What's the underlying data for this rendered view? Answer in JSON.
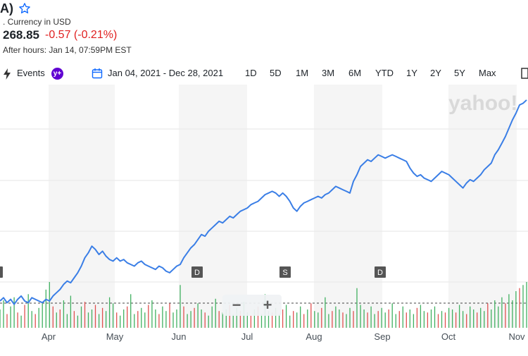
{
  "header": {
    "ticker_title": "A)",
    "currency": ". Currency in USD",
    "price": "268.85",
    "change": "-0.57 (-0.21%)",
    "after_hours": "After hours: Jan 14, 07:59PM EST"
  },
  "toolbar": {
    "events_label": "Events",
    "events_badge": "y+",
    "date_range": "Jan 04, 2021 - Dec 28, 2021",
    "ranges": [
      "1D",
      "5D",
      "1M",
      "3M",
      "6M",
      "YTD",
      "1Y",
      "2Y",
      "5Y",
      "Max"
    ]
  },
  "watermark": "yahoo!",
  "zoom": {
    "minus": "−",
    "plus": "+"
  },
  "chart_data": {
    "type": "line",
    "x_labels": [
      "Apr",
      "May",
      "Jun",
      "Jul",
      "Aug",
      "Sep",
      "Oct",
      "Nov"
    ],
    "markers": [
      {
        "label": "D",
        "month": "Jun"
      },
      {
        "label": "S",
        "month": "Jul"
      },
      {
        "label": "D",
        "month": "Sep"
      }
    ],
    "series": [
      {
        "color": "#3a7ee6",
        "values": [
          214,
          216,
          213,
          215,
          212,
          215,
          217,
          214,
          213,
          216,
          215,
          214,
          213,
          215,
          214,
          217,
          219,
          221,
          224,
          226,
          225,
          228,
          231,
          235,
          240,
          243,
          247,
          245,
          242,
          244,
          241,
          239,
          238,
          240,
          238,
          239,
          237,
          236,
          235,
          237,
          238,
          236,
          235,
          234,
          233,
          235,
          234,
          232,
          231,
          233,
          235,
          236,
          240,
          243,
          246,
          248,
          251,
          254,
          253,
          256,
          258,
          260,
          262,
          261,
          263,
          265,
          264,
          266,
          268,
          269,
          270,
          272,
          273,
          274,
          276,
          278,
          279,
          280,
          279,
          277,
          279,
          277,
          274,
          270,
          268,
          271,
          273,
          274,
          275,
          276,
          277,
          276,
          278,
          279,
          281,
          283,
          282,
          281,
          280,
          279,
          286,
          290,
          295,
          297,
          299,
          298,
          300,
          302,
          301,
          300,
          301,
          302,
          301,
          300,
          299,
          298,
          294,
          291,
          289,
          290,
          288,
          287,
          286,
          288,
          290,
          292,
          291,
          290,
          288,
          286,
          284,
          282,
          285,
          287,
          286,
          288,
          290,
          293,
          295,
          297,
          302,
          305,
          309,
          313,
          318,
          323,
          327,
          332,
          333,
          335
        ]
      }
    ],
    "volume_up_color": "#40b060",
    "volume_down_color": "#e05050",
    "volume_series": [
      12,
      18,
      9,
      14,
      20,
      10,
      8,
      15,
      22,
      11,
      9,
      13,
      16,
      25,
      30,
      14,
      10,
      12,
      18,
      9,
      21,
      11,
      8,
      14,
      17,
      10,
      12,
      15,
      9,
      13,
      11,
      20,
      16,
      10,
      8,
      12,
      14,
      22,
      9,
      11,
      13,
      10,
      15,
      18,
      12,
      9,
      14,
      11,
      16,
      10,
      12,
      28,
      14,
      9,
      11,
      13,
      16,
      12,
      10,
      8,
      14,
      19,
      11,
      10,
      12,
      15,
      9,
      13,
      11,
      17,
      10,
      8,
      12,
      14,
      9,
      22,
      11,
      10,
      13,
      9,
      12,
      15,
      8,
      11,
      10,
      14,
      9,
      12,
      16,
      11,
      10,
      13,
      20,
      9,
      11,
      14,
      12,
      10,
      9,
      13,
      11,
      26,
      15,
      12,
      10,
      14,
      9,
      11,
      13,
      10,
      12,
      16,
      9,
      11,
      14,
      10,
      12,
      9,
      13,
      15,
      11,
      10,
      12,
      14,
      9,
      11,
      10,
      13,
      12,
      10,
      15,
      11,
      9,
      14,
      12,
      10,
      13,
      11,
      16,
      12,
      18,
      14,
      20,
      16,
      22,
      18,
      24,
      26,
      28,
      30
    ],
    "volume_up_flags": [
      1,
      1,
      0,
      1,
      1,
      0,
      1,
      0,
      1,
      1,
      0,
      1,
      1,
      1,
      1,
      0,
      1,
      0,
      1,
      1,
      1,
      0,
      1,
      1,
      0,
      1,
      1,
      0,
      1,
      0,
      1,
      1,
      1,
      0,
      1,
      1,
      0,
      1,
      1,
      0,
      1,
      1,
      0,
      1,
      1,
      0,
      1,
      1,
      0,
      1,
      1,
      1,
      0,
      1,
      1,
      0,
      1,
      1,
      0,
      1,
      1,
      1,
      0,
      1,
      1,
      0,
      1,
      1,
      0,
      1,
      1,
      0,
      1,
      0,
      1,
      1,
      1,
      0,
      1,
      1,
      0,
      1,
      1,
      0,
      1,
      1,
      0,
      1,
      0,
      1,
      1,
      0,
      1,
      1,
      0,
      1,
      1,
      0,
      1,
      1,
      0,
      1,
      1,
      1,
      0,
      1,
      1,
      0,
      1,
      1,
      0,
      1,
      1,
      0,
      1,
      0,
      1,
      1,
      0,
      1,
      1,
      0,
      1,
      1,
      0,
      1,
      0,
      1,
      1,
      0,
      1,
      1,
      0,
      1,
      1,
      0,
      1,
      1,
      0,
      1,
      1,
      1,
      1,
      0,
      1,
      1,
      1,
      0,
      1,
      1
    ],
    "grid": true
  }
}
